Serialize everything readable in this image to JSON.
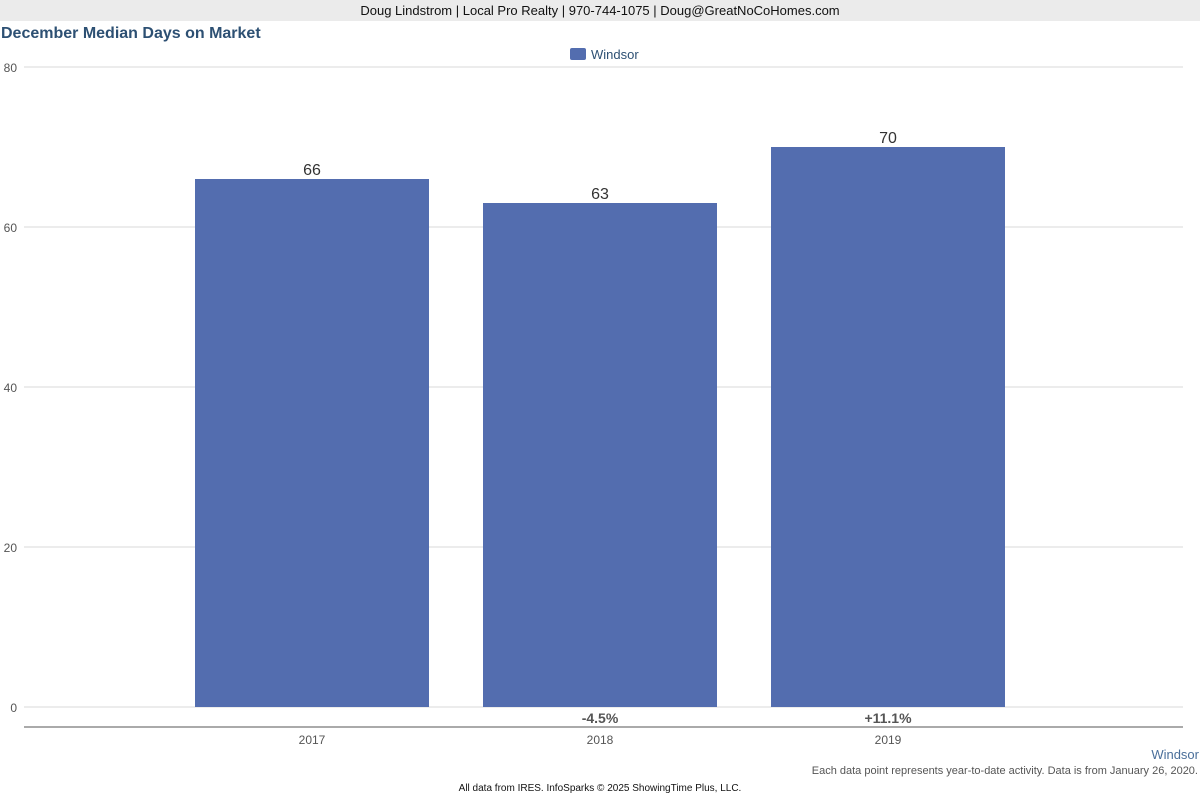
{
  "header": {
    "contact": "Doug Lindstrom | Local Pro Realty | 970-744-1075 | Doug@GreatNoCoHomes.com"
  },
  "chart_data": {
    "type": "bar",
    "title": "December Median Days on Market",
    "categories": [
      "2017",
      "2018",
      "2019"
    ],
    "series": [
      {
        "name": "Windsor",
        "values": [
          66,
          63,
          70
        ],
        "color": "#536daf"
      }
    ],
    "change_labels": [
      "",
      "-4.5%",
      "+11.1%"
    ],
    "ylim": [
      0,
      80
    ],
    "yticks": [
      0,
      20,
      40,
      60,
      80
    ],
    "grid": true,
    "legend": "top-center"
  },
  "footer": {
    "location": "Windsor",
    "note": "Each data point represents year-to-date activity. Data is from January 26, 2020.",
    "credit": "All data from IRES. InfoSparks © 2025 ShowingTime Plus, LLC."
  }
}
